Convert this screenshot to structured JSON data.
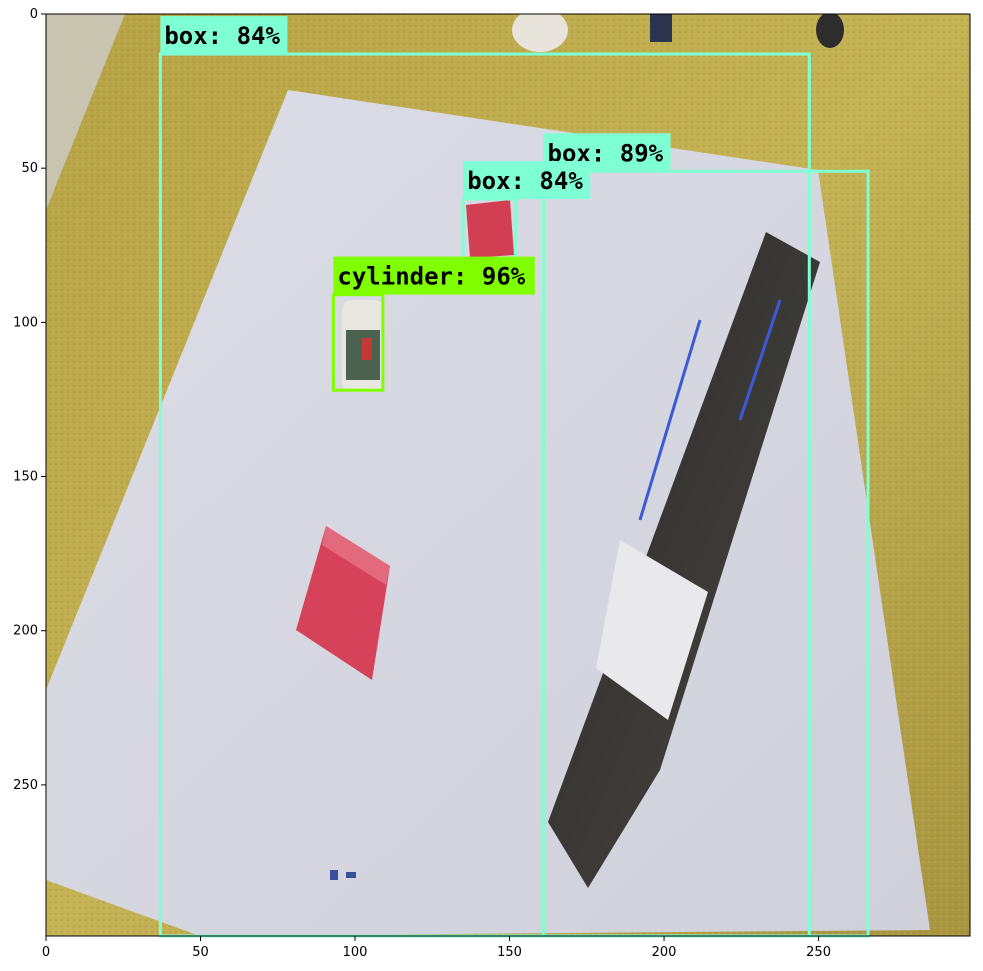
{
  "image": {
    "scene": "tabletop with white board, red boxes, a can and a large dark product box on a yellow carpet"
  },
  "axes": {
    "x_range": [
      0,
      299
    ],
    "y_range": [
      299,
      0
    ],
    "x_ticks": [
      0,
      50,
      100,
      150,
      200,
      250
    ],
    "y_ticks": [
      0,
      50,
      100,
      150,
      200,
      250
    ]
  },
  "detections": [
    {
      "label": "box: 84%",
      "class": "box",
      "score": 84,
      "xmin": 37,
      "ymin": 13,
      "xmax": 247,
      "ymax": 299,
      "color": "#7fffd4"
    },
    {
      "label": "box: 89%",
      "class": "box",
      "score": 89,
      "xmin": 161,
      "ymin": 51,
      "xmax": 266,
      "ymax": 299,
      "color": "#7fffd4"
    },
    {
      "label": "box: 84%",
      "class": "box",
      "score": 84,
      "xmin": 135,
      "ymin": 60,
      "xmax": 152,
      "ymax": 81,
      "color": "#7fffd4"
    },
    {
      "label": "cylinder: 96%",
      "class": "cylinder",
      "score": 96,
      "xmin": 93,
      "ymin": 91,
      "xmax": 109,
      "ymax": 122,
      "color": "#7fff00"
    }
  ]
}
